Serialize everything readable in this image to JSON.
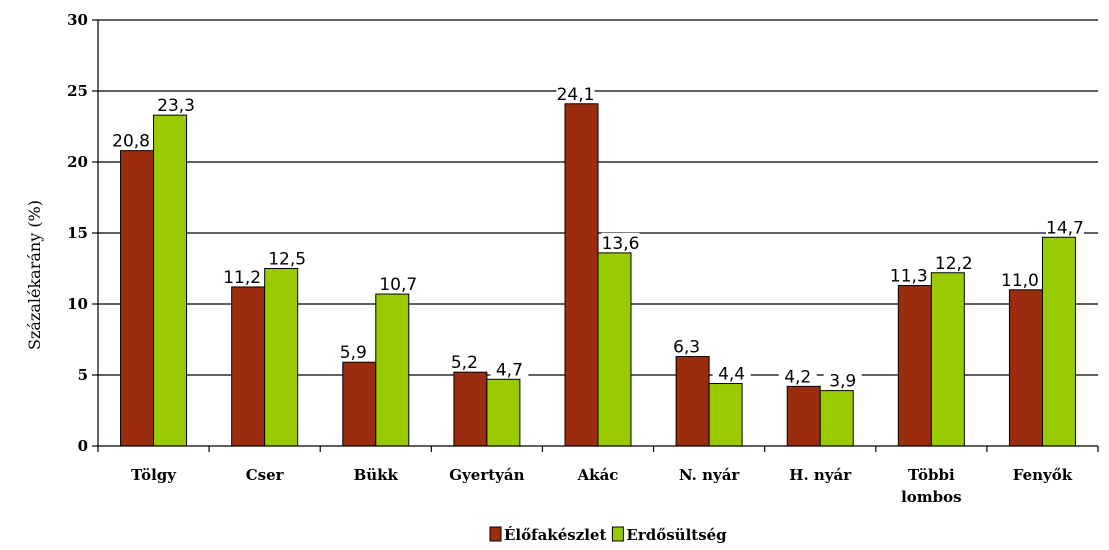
{
  "chart_data": {
    "type": "bar",
    "title": "",
    "xlabel": "",
    "ylabel": "Százalékarány (%)",
    "ylim": [
      0,
      30
    ],
    "yticks": [
      0,
      5,
      10,
      15,
      20,
      25,
      30
    ],
    "grid": true,
    "legend_position": "bottom",
    "categories": [
      [
        "Tölgy"
      ],
      [
        "Cser"
      ],
      [
        "Bükk"
      ],
      [
        "Gyertyán"
      ],
      [
        "Akác"
      ],
      [
        "N. nyár"
      ],
      [
        "H. nyár"
      ],
      [
        "Többi",
        "lombos"
      ],
      [
        "Fenyők"
      ]
    ],
    "series": [
      {
        "name": "Élőfakészlet",
        "color": "#9B2D0F",
        "values": [
          20.8,
          11.2,
          5.9,
          5.2,
          24.1,
          6.3,
          4.2,
          11.3,
          11.0
        ],
        "labels": [
          "20,8",
          "11,2",
          "5,9",
          "5,2",
          "24,1",
          "6,3",
          "4,2",
          "11,3",
          "11,0"
        ]
      },
      {
        "name": "Erdősültség",
        "color": "#99CC00",
        "values": [
          23.3,
          12.5,
          10.7,
          4.7,
          13.6,
          4.4,
          3.9,
          12.2,
          14.7
        ],
        "labels": [
          "23,3",
          "12,5",
          "10,7",
          "4,7",
          "13,6",
          "4,4",
          "3,9",
          "12,2",
          "14,7"
        ]
      }
    ]
  }
}
